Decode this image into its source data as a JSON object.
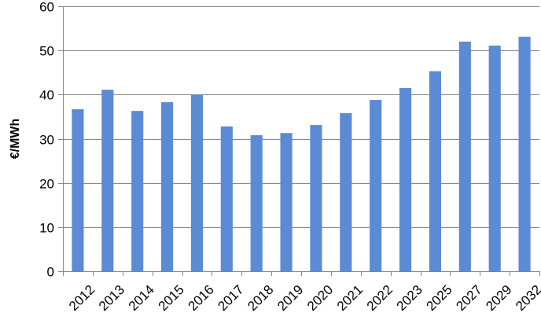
{
  "chart_data": {
    "type": "bar",
    "title": "",
    "xlabel": "",
    "ylabel": "€/MWh",
    "ylim": [
      0,
      60
    ],
    "yticks": [
      0,
      10,
      20,
      30,
      40,
      50,
      60
    ],
    "grid": true,
    "legend": "none",
    "categories": [
      "2012",
      "2013",
      "2014",
      "2015",
      "2016",
      "2017",
      "2018",
      "2019",
      "2020",
      "2021",
      "2022",
      "2023",
      "2025",
      "2027",
      "2029",
      "2032"
    ],
    "values": [
      36.7,
      41.1,
      36.3,
      38.3,
      40.0,
      32.8,
      30.8,
      31.3,
      33.1,
      35.8,
      38.8,
      41.5,
      45.3,
      52.0,
      51.1,
      53.1
    ],
    "colors": {
      "bar": "#5B8BD5",
      "grid": "#868686",
      "axis": "#868686"
    }
  }
}
